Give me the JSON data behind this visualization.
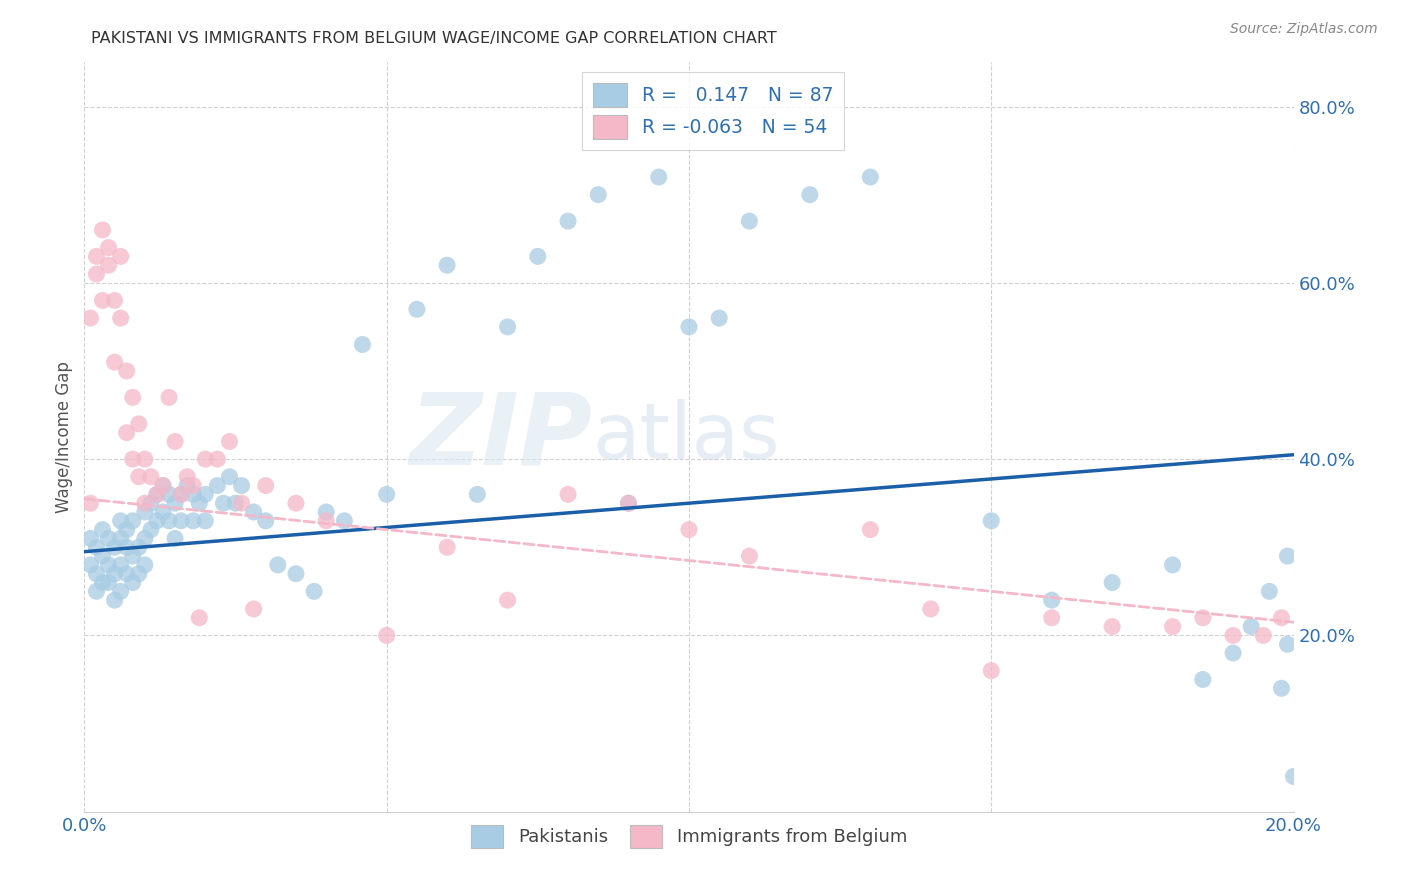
{
  "title": "PAKISTANI VS IMMIGRANTS FROM BELGIUM WAGE/INCOME GAP CORRELATION CHART",
  "source": "Source: ZipAtlas.com",
  "ylabel": "Wage/Income Gap",
  "xlim": [
    0.0,
    0.2
  ],
  "ylim": [
    0.0,
    0.85
  ],
  "x_ticks": [
    0.0,
    0.05,
    0.1,
    0.15,
    0.2
  ],
  "x_tick_labels": [
    "0.0%",
    "",
    "",
    "",
    "20.0%"
  ],
  "y_ticks": [
    0.2,
    0.4,
    0.6,
    0.8
  ],
  "y_tick_labels": [
    "20.0%",
    "40.0%",
    "60.0%",
    "80.0%"
  ],
  "blue_R": 0.147,
  "blue_N": 87,
  "pink_R": -0.063,
  "pink_N": 54,
  "blue_color": "#a8cce4",
  "pink_color": "#f4b8c8",
  "blue_line_color": "#1a5fa8",
  "pink_line_color": "#f4b8c8",
  "legend_label_blue": "Pakistanis",
  "legend_label_pink": "Immigrants from Belgium",
  "blue_scatter_x": [
    0.001,
    0.001,
    0.002,
    0.002,
    0.002,
    0.003,
    0.003,
    0.003,
    0.004,
    0.004,
    0.004,
    0.005,
    0.005,
    0.005,
    0.006,
    0.006,
    0.006,
    0.006,
    0.007,
    0.007,
    0.007,
    0.008,
    0.008,
    0.008,
    0.009,
    0.009,
    0.01,
    0.01,
    0.01,
    0.011,
    0.011,
    0.012,
    0.012,
    0.013,
    0.013,
    0.014,
    0.014,
    0.015,
    0.015,
    0.016,
    0.016,
    0.017,
    0.018,
    0.018,
    0.019,
    0.02,
    0.02,
    0.022,
    0.023,
    0.024,
    0.025,
    0.026,
    0.028,
    0.03,
    0.032,
    0.035,
    0.038,
    0.04,
    0.043,
    0.046,
    0.05,
    0.055,
    0.06,
    0.065,
    0.07,
    0.075,
    0.08,
    0.085,
    0.09,
    0.095,
    0.1,
    0.105,
    0.11,
    0.12,
    0.13,
    0.15,
    0.16,
    0.17,
    0.18,
    0.185,
    0.19,
    0.193,
    0.196,
    0.198,
    0.199,
    0.199,
    0.2
  ],
  "blue_scatter_y": [
    0.31,
    0.28,
    0.3,
    0.27,
    0.25,
    0.29,
    0.26,
    0.32,
    0.28,
    0.31,
    0.26,
    0.3,
    0.27,
    0.24,
    0.31,
    0.28,
    0.33,
    0.25,
    0.3,
    0.27,
    0.32,
    0.29,
    0.26,
    0.33,
    0.3,
    0.27,
    0.34,
    0.31,
    0.28,
    0.35,
    0.32,
    0.36,
    0.33,
    0.37,
    0.34,
    0.36,
    0.33,
    0.35,
    0.31,
    0.36,
    0.33,
    0.37,
    0.36,
    0.33,
    0.35,
    0.36,
    0.33,
    0.37,
    0.35,
    0.38,
    0.35,
    0.37,
    0.34,
    0.33,
    0.28,
    0.27,
    0.25,
    0.34,
    0.33,
    0.53,
    0.36,
    0.57,
    0.62,
    0.36,
    0.55,
    0.63,
    0.67,
    0.7,
    0.35,
    0.72,
    0.55,
    0.56,
    0.67,
    0.7,
    0.72,
    0.33,
    0.24,
    0.26,
    0.28,
    0.15,
    0.18,
    0.21,
    0.25,
    0.14,
    0.19,
    0.29,
    0.04
  ],
  "pink_scatter_x": [
    0.001,
    0.001,
    0.002,
    0.002,
    0.003,
    0.003,
    0.004,
    0.004,
    0.005,
    0.005,
    0.006,
    0.006,
    0.007,
    0.007,
    0.008,
    0.008,
    0.009,
    0.009,
    0.01,
    0.01,
    0.011,
    0.012,
    0.013,
    0.014,
    0.015,
    0.016,
    0.017,
    0.018,
    0.019,
    0.02,
    0.022,
    0.024,
    0.026,
    0.028,
    0.03,
    0.035,
    0.04,
    0.05,
    0.06,
    0.07,
    0.08,
    0.09,
    0.1,
    0.11,
    0.13,
    0.14,
    0.15,
    0.16,
    0.17,
    0.18,
    0.185,
    0.19,
    0.195,
    0.198
  ],
  "pink_scatter_y": [
    0.35,
    0.56,
    0.61,
    0.63,
    0.66,
    0.58,
    0.62,
    0.64,
    0.58,
    0.51,
    0.63,
    0.56,
    0.5,
    0.43,
    0.47,
    0.4,
    0.44,
    0.38,
    0.4,
    0.35,
    0.38,
    0.36,
    0.37,
    0.47,
    0.42,
    0.36,
    0.38,
    0.37,
    0.22,
    0.4,
    0.4,
    0.42,
    0.35,
    0.23,
    0.37,
    0.35,
    0.33,
    0.2,
    0.3,
    0.24,
    0.36,
    0.35,
    0.32,
    0.29,
    0.32,
    0.23,
    0.16,
    0.22,
    0.21,
    0.21,
    0.22,
    0.2,
    0.2,
    0.22
  ]
}
